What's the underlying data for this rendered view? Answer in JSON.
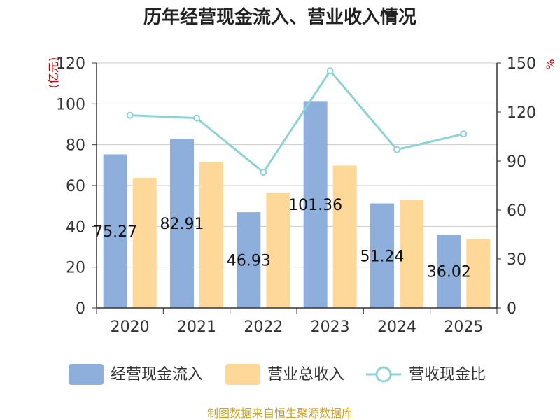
{
  "chart_data": {
    "type": "bar",
    "title": "历年经营现金流入、营业收入情况",
    "categories": [
      "2020",
      "2021",
      "2022",
      "2023",
      "2024",
      "2025"
    ],
    "series": [
      {
        "name": "经营现金流入",
        "kind": "bar",
        "axis": "left",
        "color": "#8eaedb",
        "values": [
          75.27,
          82.91,
          46.93,
          101.36,
          51.24,
          36.02
        ],
        "labels": [
          "75.27",
          "82.91",
          "46.93",
          "101.36",
          "51.24",
          "36.02"
        ]
      },
      {
        "name": "营业总收入",
        "kind": "bar",
        "axis": "left",
        "color": "#fdd898",
        "values": [
          63.8,
          71.3,
          56.5,
          69.8,
          52.8,
          33.8
        ]
      },
      {
        "name": "营收现金比",
        "kind": "line",
        "axis": "right",
        "color": "#8dd3d5",
        "values": [
          118,
          116.3,
          83.1,
          145.2,
          97.0,
          106.6
        ]
      }
    ],
    "y_left": {
      "unit": "(亿元)",
      "ylim": [
        0,
        120
      ],
      "ticks": [
        "0",
        "20",
        "40",
        "60",
        "80",
        "100",
        "120"
      ]
    },
    "y_right": {
      "unit": "%",
      "ylim": [
        0,
        150
      ],
      "ticks": [
        "0",
        "30",
        "60",
        "90",
        "120",
        "150"
      ]
    },
    "grid": true,
    "legend_position": "bottom",
    "source": "制图数据来自恒生聚源数据库"
  }
}
